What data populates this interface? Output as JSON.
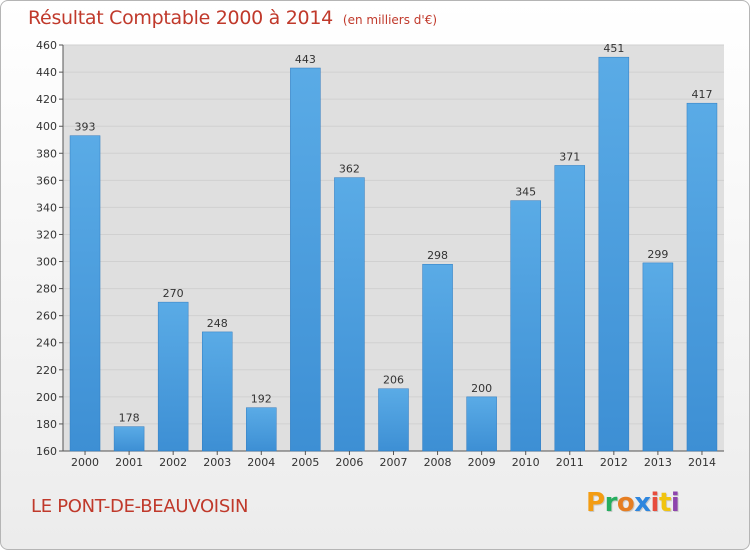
{
  "title": "Résultat Comptable 2000 à 2014",
  "subtitle": "(en milliers d'€)",
  "town": "LE PONT-DE-BEAUVOISIN",
  "logo": {
    "text": "Proxiti",
    "letters": [
      {
        "ch": "P",
        "color": "#f39c12"
      },
      {
        "ch": "r",
        "color": "#27ae60"
      },
      {
        "ch": "o",
        "color": "#e67e22"
      },
      {
        "ch": "x",
        "color": "#2e86de"
      },
      {
        "ch": "i",
        "color": "#e74c3c"
      },
      {
        "ch": "t",
        "color": "#f1c40f"
      },
      {
        "ch": "i",
        "color": "#8e44ad"
      }
    ]
  },
  "colors": {
    "title": "#c0392b",
    "bar": "#3d8fd4",
    "bar_light": "#5aabe6",
    "grid": "#d0d0d0",
    "plot_bg": "#dfdfdf"
  },
  "chart_data": {
    "type": "bar",
    "categories": [
      "2000",
      "2001",
      "2002",
      "2003",
      "2004",
      "2005",
      "2006",
      "2007",
      "2008",
      "2009",
      "2010",
      "2011",
      "2012",
      "2013",
      "2014"
    ],
    "values": [
      393,
      178,
      270,
      248,
      192,
      443,
      362,
      206,
      298,
      200,
      345,
      371,
      451,
      299,
      417
    ],
    "ylim": [
      160,
      460
    ],
    "yticks": [
      160,
      180,
      200,
      220,
      240,
      260,
      280,
      300,
      320,
      340,
      360,
      380,
      400,
      420,
      440,
      460
    ],
    "grid": true
  }
}
